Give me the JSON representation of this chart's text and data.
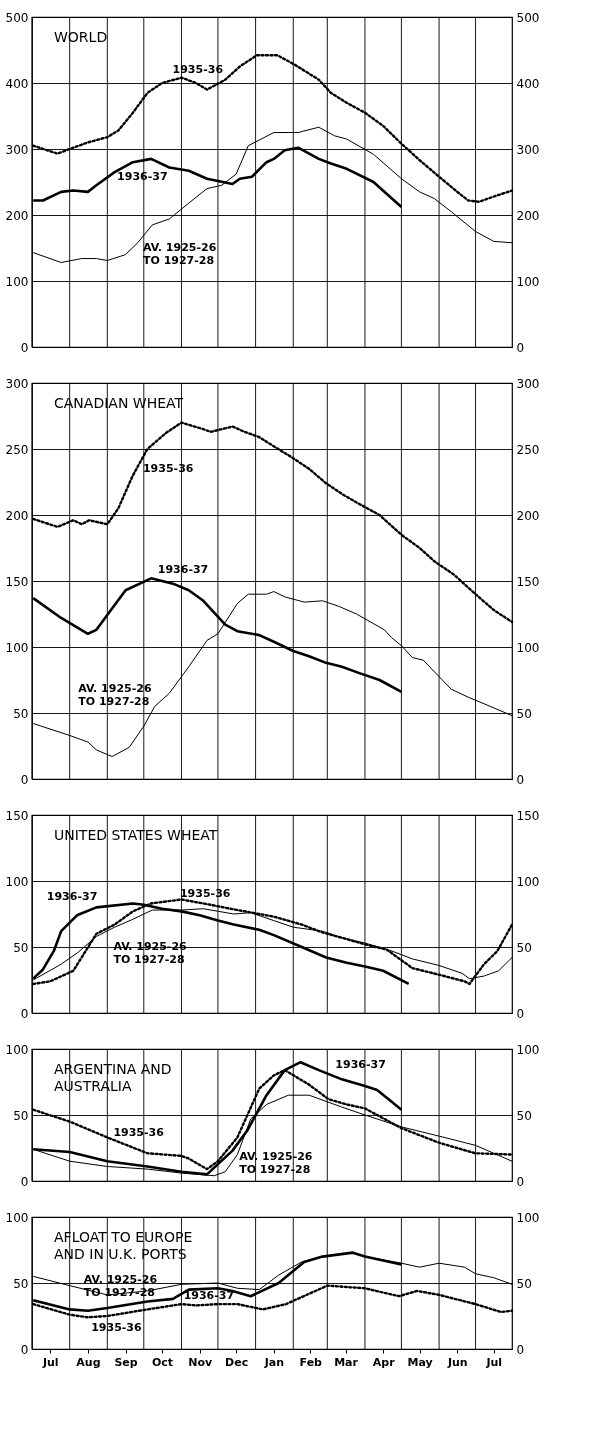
{
  "chart_data": [
    {
      "type": "line",
      "title": "WORLD",
      "xlim": [
        "1936-07-01",
        "1937-07-31"
      ],
      "xticks": [
        {
          "value": "1936-07-01",
          "label": null
        },
        {
          "value": "1936-08-01",
          "label": null
        },
        {
          "value": "1936-09-01",
          "label": null
        },
        {
          "value": "1936-10-01",
          "label": null
        },
        {
          "value": "1936-11-01",
          "label": null
        },
        {
          "value": "1936-12-01",
          "label": null
        },
        {
          "value": "1937-01-01",
          "label": null
        },
        {
          "value": "1937-02-01",
          "label": null
        },
        {
          "value": "1937-03-01",
          "label": null
        },
        {
          "value": "1937-04-01",
          "label": null
        },
        {
          "value": "1937-05-01",
          "label": null
        },
        {
          "value": "1937-06-01",
          "label": null
        },
        {
          "value": "1937-07-01",
          "label": null
        }
      ],
      "ylim": [
        0,
        500
      ],
      "yticks": [
        0,
        100,
        200,
        300,
        400,
        500
      ],
      "y2lim": [
        0,
        500
      ],
      "y2ticks": [
        0,
        100,
        200,
        300,
        400,
        500
      ],
      "grid": true,
      "tick_labels": "y",
      "series": [
        {
          "name": "AV. 1925-26\nTO 1927-28",
          "color": "#000000",
          "line_style": "solid",
          "x": [
            "1936-07-02",
            "1936-07-25",
            "1936-08-11",
            "1936-08-23",
            "1936-09-01",
            "1936-09-16",
            "1936-09-26",
            "1936-10-08",
            "1936-10-22",
            "1936-11-07",
            "1936-11-22",
            "1936-12-04",
            "1936-12-16",
            "1936-12-26",
            "1937-01-16",
            "1937-02-05",
            "1937-02-22",
            "1937-03-07",
            "1937-03-17",
            "1937-04-08",
            "1937-05-01",
            "1937-05-16",
            "1937-05-28",
            "1937-06-11",
            "1937-07-01",
            "1937-07-16",
            "1937-07-31"
          ],
          "values": [
            143,
            128,
            134,
            134,
            131,
            140,
            158,
            185,
            194,
            218,
            240,
            245,
            262,
            305,
            325,
            325,
            333,
            320,
            315,
            292,
            255,
            235,
            225,
            205,
            175,
            160,
            158
          ]
        },
        {
          "name": "1936-37",
          "color": "#000000",
          "line_style": "solid",
          "x": [
            "1936-07-02",
            "1936-07-10",
            "1936-07-25",
            "1936-08-04",
            "1936-08-16",
            "1936-08-23",
            "1936-09-07",
            "1936-09-22",
            "1936-10-07",
            "1936-10-22",
            "1936-11-07",
            "1936-11-22",
            "1936-12-13",
            "1936-12-19",
            "1936-12-29",
            "1937-01-10",
            "1937-01-16",
            "1937-01-25",
            "1937-02-05",
            "1937-02-22",
            "1937-03-04",
            "1937-03-17",
            "1937-04-08",
            "1937-05-01"
          ],
          "values": [
            222,
            222,
            235,
            237,
            235,
            245,
            265,
            280,
            285,
            272,
            267,
            255,
            247,
            255,
            258,
            280,
            285,
            298,
            302,
            285,
            278,
            270,
            250,
            212
          ]
        },
        {
          "name": "1935-36",
          "color": "#000000",
          "line_style": "dotted",
          "x": [
            "1936-07-02",
            "1936-07-22",
            "1936-08-04",
            "1936-08-16",
            "1936-09-01",
            "1936-09-10",
            "1936-09-22",
            "1936-10-04",
            "1936-10-16",
            "1936-11-01",
            "1936-11-13",
            "1936-11-22",
            "1936-12-07",
            "1936-12-19",
            "1937-01-02",
            "1937-01-19",
            "1937-02-02",
            "1937-02-22",
            "1937-03-04",
            "1937-03-17",
            "1937-04-01",
            "1937-04-16",
            "1937-05-01",
            "1937-05-16",
            "1937-06-01",
            "1937-06-16",
            "1937-06-25",
            "1937-07-04",
            "1937-07-16",
            "1937-07-31"
          ],
          "values": [
            305,
            293,
            302,
            310,
            318,
            328,
            355,
            385,
            400,
            408,
            400,
            390,
            405,
            425,
            442,
            442,
            428,
            405,
            385,
            370,
            355,
            335,
            308,
            283,
            258,
            235,
            222,
            220,
            228,
            237
          ]
        }
      ]
    },
    {
      "type": "line",
      "title": "CANADIAN WHEAT",
      "xlim": [
        "1936-07-01",
        "1937-07-31"
      ],
      "xticks": [
        {
          "value": "1936-07-01",
          "label": null
        },
        {
          "value": "1936-08-01",
          "label": null
        },
        {
          "value": "1936-09-01",
          "label": null
        },
        {
          "value": "1936-10-01",
          "label": null
        },
        {
          "value": "1936-11-01",
          "label": null
        },
        {
          "value": "1936-12-01",
          "label": null
        },
        {
          "value": "1937-01-01",
          "label": null
        },
        {
          "value": "1937-02-01",
          "label": null
        },
        {
          "value": "1937-03-01",
          "label": null
        },
        {
          "value": "1937-04-01",
          "label": null
        },
        {
          "value": "1937-05-01",
          "label": null
        },
        {
          "value": "1937-06-01",
          "label": null
        },
        {
          "value": "1937-07-01",
          "label": null
        }
      ],
      "ylim": [
        0,
        300
      ],
      "yticks": [
        0,
        50,
        100,
        150,
        200,
        250,
        300
      ],
      "y2lim": [
        0,
        300
      ],
      "y2ticks": [
        0,
        50,
        100,
        150,
        200,
        250,
        300
      ],
      "grid": true,
      "tick_labels": "y",
      "series": [
        {
          "name": "AV. 1925-26\nTO 1927-28",
          "color": "#000000",
          "line_style": "solid",
          "x": [
            "1936-07-02",
            "1936-08-01",
            "1936-08-16",
            "1936-08-23",
            "1936-09-05",
            "1936-09-19",
            "1936-10-01",
            "1936-10-10",
            "1936-10-22",
            "1936-11-07",
            "1936-11-22",
            "1936-12-01",
            "1936-12-17",
            "1936-12-26",
            "1937-01-10",
            "1937-01-16",
            "1937-01-25",
            "1937-02-10",
            "1937-02-25",
            "1937-03-10",
            "1937-03-25",
            "1937-04-17",
            "1937-04-23",
            "1937-05-01",
            "1937-05-10",
            "1937-05-19",
            "1937-06-11",
            "1937-06-25",
            "1937-07-08",
            "1937-07-31"
          ],
          "values": [
            42,
            33,
            28,
            22,
            17,
            24,
            40,
            55,
            65,
            85,
            105,
            110,
            133,
            140,
            140,
            142,
            138,
            134,
            135,
            131,
            125,
            113,
            107,
            101,
            92,
            90,
            68,
            62,
            57,
            48
          ]
        },
        {
          "name": "1936-37",
          "color": "#000000",
          "line_style": "solid",
          "x": [
            "1936-07-02",
            "1936-07-25",
            "1936-08-16",
            "1936-08-23",
            "1936-09-04",
            "1936-09-16",
            "1936-10-07",
            "1936-10-25",
            "1936-11-07",
            "1936-11-19",
            "1936-12-07",
            "1936-12-17",
            "1937-01-04",
            "1937-01-16",
            "1937-02-01",
            "1937-02-14",
            "1937-02-28",
            "1937-03-13",
            "1937-03-28",
            "1937-04-13",
            "1937-05-01"
          ],
          "values": [
            137,
            122,
            110,
            113,
            128,
            143,
            152,
            148,
            143,
            135,
            117,
            112,
            109,
            104,
            97,
            93,
            88,
            85,
            80,
            75,
            66
          ]
        },
        {
          "name": "1935-36",
          "color": "#000000",
          "line_style": "dotted",
          "x": [
            "1936-07-02",
            "1936-07-22",
            "1936-08-04",
            "1936-08-11",
            "1936-08-17",
            "1936-09-01",
            "1936-09-10",
            "1936-09-22",
            "1936-10-04",
            "1936-10-19",
            "1936-11-01",
            "1936-11-19",
            "1936-11-25",
            "1936-12-13",
            "1936-12-23",
            "1937-01-04",
            "1937-01-16",
            "1937-02-01",
            "1937-02-14",
            "1937-02-28",
            "1937-03-13",
            "1937-03-28",
            "1937-04-13",
            "1937-05-01",
            "1937-05-16",
            "1937-05-28",
            "1937-06-13",
            "1937-07-01",
            "1937-07-16",
            "1937-07-31"
          ],
          "values": [
            197,
            191,
            196,
            193,
            196,
            193,
            205,
            230,
            250,
            262,
            270,
            265,
            263,
            267,
            263,
            259,
            252,
            243,
            235,
            224,
            216,
            208,
            200,
            185,
            175,
            165,
            155,
            140,
            128,
            119
          ]
        }
      ]
    },
    {
      "type": "line",
      "title": "UNITED STATES WHEAT",
      "xlim": [
        "1936-07-01",
        "1937-07-31"
      ],
      "xticks": [
        {
          "value": "1936-07-01",
          "label": null
        },
        {
          "value": "1936-08-01",
          "label": null
        },
        {
          "value": "1936-09-01",
          "label": null
        },
        {
          "value": "1936-10-01",
          "label": null
        },
        {
          "value": "1936-11-01",
          "label": null
        },
        {
          "value": "1936-12-01",
          "label": null
        },
        {
          "value": "1937-01-01",
          "label": null
        },
        {
          "value": "1937-02-01",
          "label": null
        },
        {
          "value": "1937-03-01",
          "label": null
        },
        {
          "value": "1937-04-01",
          "label": null
        },
        {
          "value": "1937-05-01",
          "label": null
        },
        {
          "value": "1937-06-01",
          "label": null
        },
        {
          "value": "1937-07-01",
          "label": null
        }
      ],
      "ylim": [
        0,
        150
      ],
      "yticks": [
        0,
        50,
        100,
        150
      ],
      "y2lim": [
        0,
        150
      ],
      "y2ticks": [
        0,
        50,
        100,
        150
      ],
      "grid": true,
      "tick_labels": "y",
      "series": [
        {
          "name": "AV. 1925-26\nTO 1927-28",
          "color": "#000000",
          "line_style": "solid",
          "x": [
            "1936-07-02",
            "1936-07-25",
            "1936-08-08",
            "1936-08-23",
            "1936-09-07",
            "1936-09-22",
            "1936-10-08",
            "1936-11-01",
            "1936-11-19",
            "1936-12-14",
            "1936-12-28",
            "1937-01-16",
            "1937-02-01",
            "1937-02-25",
            "1937-03-13",
            "1937-04-01",
            "1937-04-23",
            "1937-05-10",
            "1937-06-01",
            "1937-06-20",
            "1937-06-26",
            "1937-07-08",
            "1937-07-20",
            "1937-07-31"
          ],
          "values": [
            25,
            37,
            46,
            58,
            65,
            71,
            78,
            78,
            79,
            75,
            76,
            70,
            65,
            62,
            57,
            53,
            47,
            41,
            36,
            30,
            26,
            28,
            32,
            42
          ]
        },
        {
          "name": "1936-37",
          "color": "#000000",
          "line_style": "solid",
          "x": [
            "1936-07-02",
            "1936-07-10",
            "1936-07-19",
            "1936-07-25",
            "1936-08-07",
            "1936-08-23",
            "1936-09-22",
            "1936-10-01",
            "1936-10-16",
            "1936-11-01",
            "1936-11-16",
            "1936-12-01",
            "1936-12-14",
            "1937-01-04",
            "1937-01-16",
            "1937-02-08",
            "1937-02-28",
            "1937-03-17",
            "1937-04-02",
            "1937-04-16",
            "1937-05-07"
          ],
          "values": [
            26,
            33,
            47,
            62,
            74,
            80,
            83,
            82,
            79,
            77,
            74,
            70,
            67,
            63,
            59,
            50,
            42,
            38,
            35,
            32,
            22
          ]
        },
        {
          "name": "1935-36",
          "color": "#000000",
          "line_style": "dotted",
          "x": [
            "1936-07-02",
            "1936-07-16",
            "1936-08-04",
            "1936-08-23",
            "1936-09-07",
            "1936-09-22",
            "1936-10-07",
            "1936-11-01",
            "1936-11-19",
            "1936-12-17",
            "1937-01-16",
            "1937-02-08",
            "1937-02-25",
            "1937-03-13",
            "1937-04-01",
            "1937-04-19",
            "1937-05-10",
            "1937-06-01",
            "1937-06-22",
            "1937-06-26",
            "1937-07-08",
            "1937-07-19",
            "1937-07-31"
          ],
          "values": [
            22,
            24,
            32,
            60,
            67,
            77,
            83,
            86,
            83,
            78,
            73,
            67,
            61,
            57,
            52,
            48,
            34,
            29,
            24,
            22,
            37,
            47,
            67
          ]
        }
      ]
    },
    {
      "type": "line",
      "title": "ARGENTINA AND\nAUSTRALIA",
      "xlim": [
        "1936-07-01",
        "1937-07-31"
      ],
      "xticks": [
        {
          "value": "1936-07-01",
          "label": null
        },
        {
          "value": "1936-08-01",
          "label": null
        },
        {
          "value": "1936-09-01",
          "label": null
        },
        {
          "value": "1936-10-01",
          "label": null
        },
        {
          "value": "1936-11-01",
          "label": null
        },
        {
          "value": "1936-12-01",
          "label": null
        },
        {
          "value": "1937-01-01",
          "label": null
        },
        {
          "value": "1937-02-01",
          "label": null
        },
        {
          "value": "1937-03-01",
          "label": null
        },
        {
          "value": "1937-04-01",
          "label": null
        },
        {
          "value": "1937-05-01",
          "label": null
        },
        {
          "value": "1937-06-01",
          "label": null
        },
        {
          "value": "1937-07-01",
          "label": null
        }
      ],
      "ylim": [
        0,
        100
      ],
      "yticks": [
        0,
        50,
        100
      ],
      "y2lim": [
        0,
        100
      ],
      "y2ticks": [
        0,
        50,
        100
      ],
      "grid": true,
      "tick_labels": "y",
      "series": [
        {
          "name": "AV. 1925-26\nTO 1927-28",
          "color": "#000000",
          "line_style": "solid",
          "x": [
            "1936-07-02",
            "1936-08-01",
            "1936-09-01",
            "1936-10-04",
            "1936-11-01",
            "1936-11-28",
            "1936-12-07",
            "1936-12-17",
            "1936-12-28",
            "1937-01-10",
            "1937-01-28",
            "1937-02-14",
            "1937-03-13",
            "1937-04-01",
            "1937-05-01",
            "1937-06-01",
            "1937-07-01",
            "1937-07-31"
          ],
          "values": [
            24,
            15,
            11,
            9,
            6,
            4,
            7,
            20,
            47,
            58,
            65,
            65,
            56,
            50,
            41,
            34,
            27,
            15
          ]
        },
        {
          "name": "1936-37",
          "color": "#000000",
          "line_style": "solid",
          "x": [
            "1936-07-02",
            "1936-08-01",
            "1936-09-01",
            "1936-10-04",
            "1936-11-01",
            "1936-11-22",
            "1936-12-13",
            "1936-12-25",
            "1937-01-10",
            "1937-01-25",
            "1937-02-07",
            "1937-02-22",
            "1937-03-13",
            "1937-04-01",
            "1937-04-11",
            "1937-04-23",
            "1937-05-01"
          ],
          "values": [
            24,
            22,
            15,
            11,
            7,
            5,
            23,
            38,
            65,
            84,
            90,
            84,
            77,
            72,
            69,
            60,
            54
          ]
        },
        {
          "name": "1935-36",
          "color": "#000000",
          "line_style": "dotted",
          "x": [
            "1936-07-02",
            "1936-08-01",
            "1936-09-01",
            "1936-10-04",
            "1936-11-01",
            "1936-11-07",
            "1936-11-22",
            "1936-12-01",
            "1936-12-17",
            "1937-01-04",
            "1937-01-16",
            "1937-01-25",
            "1937-02-14",
            "1937-03-02",
            "1937-03-17",
            "1937-04-01",
            "1937-05-01",
            "1937-06-01",
            "1937-07-01",
            "1937-07-31"
          ],
          "values": [
            54,
            45,
            33,
            21,
            19,
            17,
            9,
            15,
            33,
            70,
            80,
            84,
            73,
            62,
            58,
            55,
            40,
            29,
            21,
            20
          ]
        }
      ]
    },
    {
      "type": "line",
      "title": "AFLOAT TO EUROPE\nAND IN U.K. PORTS",
      "xlim": [
        "1936-07-01",
        "1937-07-31"
      ],
      "xticks": [
        {
          "value": "1936-07-01",
          "label": null
        },
        {
          "value": "1936-07-16",
          "label": "Jul"
        },
        {
          "value": "1936-08-01",
          "label": null
        },
        {
          "value": "1936-08-16",
          "label": "Aug"
        },
        {
          "value": "1936-09-01",
          "label": null
        },
        {
          "value": "1936-09-16",
          "label": "Sep"
        },
        {
          "value": "1936-10-01",
          "label": null
        },
        {
          "value": "1936-10-16",
          "label": "Oct"
        },
        {
          "value": "1936-11-01",
          "label": null
        },
        {
          "value": "1936-11-16",
          "label": "Nov"
        },
        {
          "value": "1936-12-01",
          "label": null
        },
        {
          "value": "1936-12-16",
          "label": "Dec"
        },
        {
          "value": "1937-01-01",
          "label": null
        },
        {
          "value": "1937-01-16",
          "label": "Jan"
        },
        {
          "value": "1937-02-01",
          "label": null
        },
        {
          "value": "1937-02-15",
          "label": "Feb"
        },
        {
          "value": "1937-03-01",
          "label": null
        },
        {
          "value": "1937-03-16",
          "label": "Mar"
        },
        {
          "value": "1937-04-01",
          "label": null
        },
        {
          "value": "1937-04-16",
          "label": "Apr"
        },
        {
          "value": "1937-05-01",
          "label": null
        },
        {
          "value": "1937-05-16",
          "label": "May"
        },
        {
          "value": "1937-06-01",
          "label": null
        },
        {
          "value": "1937-06-16",
          "label": "Jun"
        },
        {
          "value": "1937-07-01",
          "label": null
        },
        {
          "value": "1937-07-16",
          "label": "Jul"
        }
      ],
      "ylim": [
        0,
        100
      ],
      "yticks": [
        0,
        50,
        100
      ],
      "y2lim": [
        0,
        100
      ],
      "y2ticks": [
        0,
        50,
        100
      ],
      "grid": true,
      "series": [
        {
          "name": "AV. 1925-26\nTO 1927-28",
          "color": "#000000",
          "line_style": "solid",
          "x": [
            "1936-07-02",
            "1936-08-01",
            "1936-09-01",
            "1936-10-04",
            "1936-11-01",
            "1936-12-01",
            "1936-12-17",
            "1937-01-04",
            "1937-01-20",
            "1937-02-08",
            "1937-02-25",
            "1937-03-22",
            "1937-04-01",
            "1937-05-01",
            "1937-05-16",
            "1937-06-01",
            "1937-06-22",
            "1937-07-01",
            "1937-07-16",
            "1937-07-31"
          ],
          "values": [
            55,
            48,
            41,
            44,
            49,
            50,
            46,
            45,
            56,
            66,
            70,
            73,
            70,
            65,
            62,
            65,
            62,
            57,
            54,
            49
          ]
        },
        {
          "name": "1936-37",
          "color": "#000000",
          "line_style": "solid",
          "x": [
            "1936-07-02",
            "1936-08-01",
            "1936-08-16",
            "1936-09-01",
            "1936-10-04",
            "1936-10-25",
            "1936-11-07",
            "1936-12-01",
            "1936-12-13",
            "1936-12-28",
            "1937-01-20",
            "1937-02-10",
            "1937-02-25",
            "1937-03-22",
            "1937-04-01",
            "1937-05-01"
          ],
          "values": [
            37,
            30,
            29,
            31,
            36,
            38,
            45,
            46,
            44,
            40,
            50,
            66,
            70,
            73,
            70,
            64
          ]
        },
        {
          "name": "1935-36",
          "color": "#000000",
          "line_style": "dotted",
          "x": [
            "1936-07-02",
            "1936-08-01",
            "1936-08-16",
            "1936-09-01",
            "1936-10-04",
            "1936-11-01",
            "1936-11-13",
            "1936-12-01",
            "1936-12-17",
            "1937-01-07",
            "1937-01-26",
            "1937-03-01",
            "1937-04-01",
            "1937-04-29",
            "1937-05-14",
            "1937-06-01",
            "1937-07-01",
            "1937-07-22",
            "1937-07-31"
          ],
          "values": [
            34,
            26,
            24,
            25,
            30,
            34,
            33,
            34,
            34,
            30,
            34,
            48,
            46,
            40,
            44,
            41,
            34,
            28,
            29
          ]
        }
      ]
    }
  ]
}
